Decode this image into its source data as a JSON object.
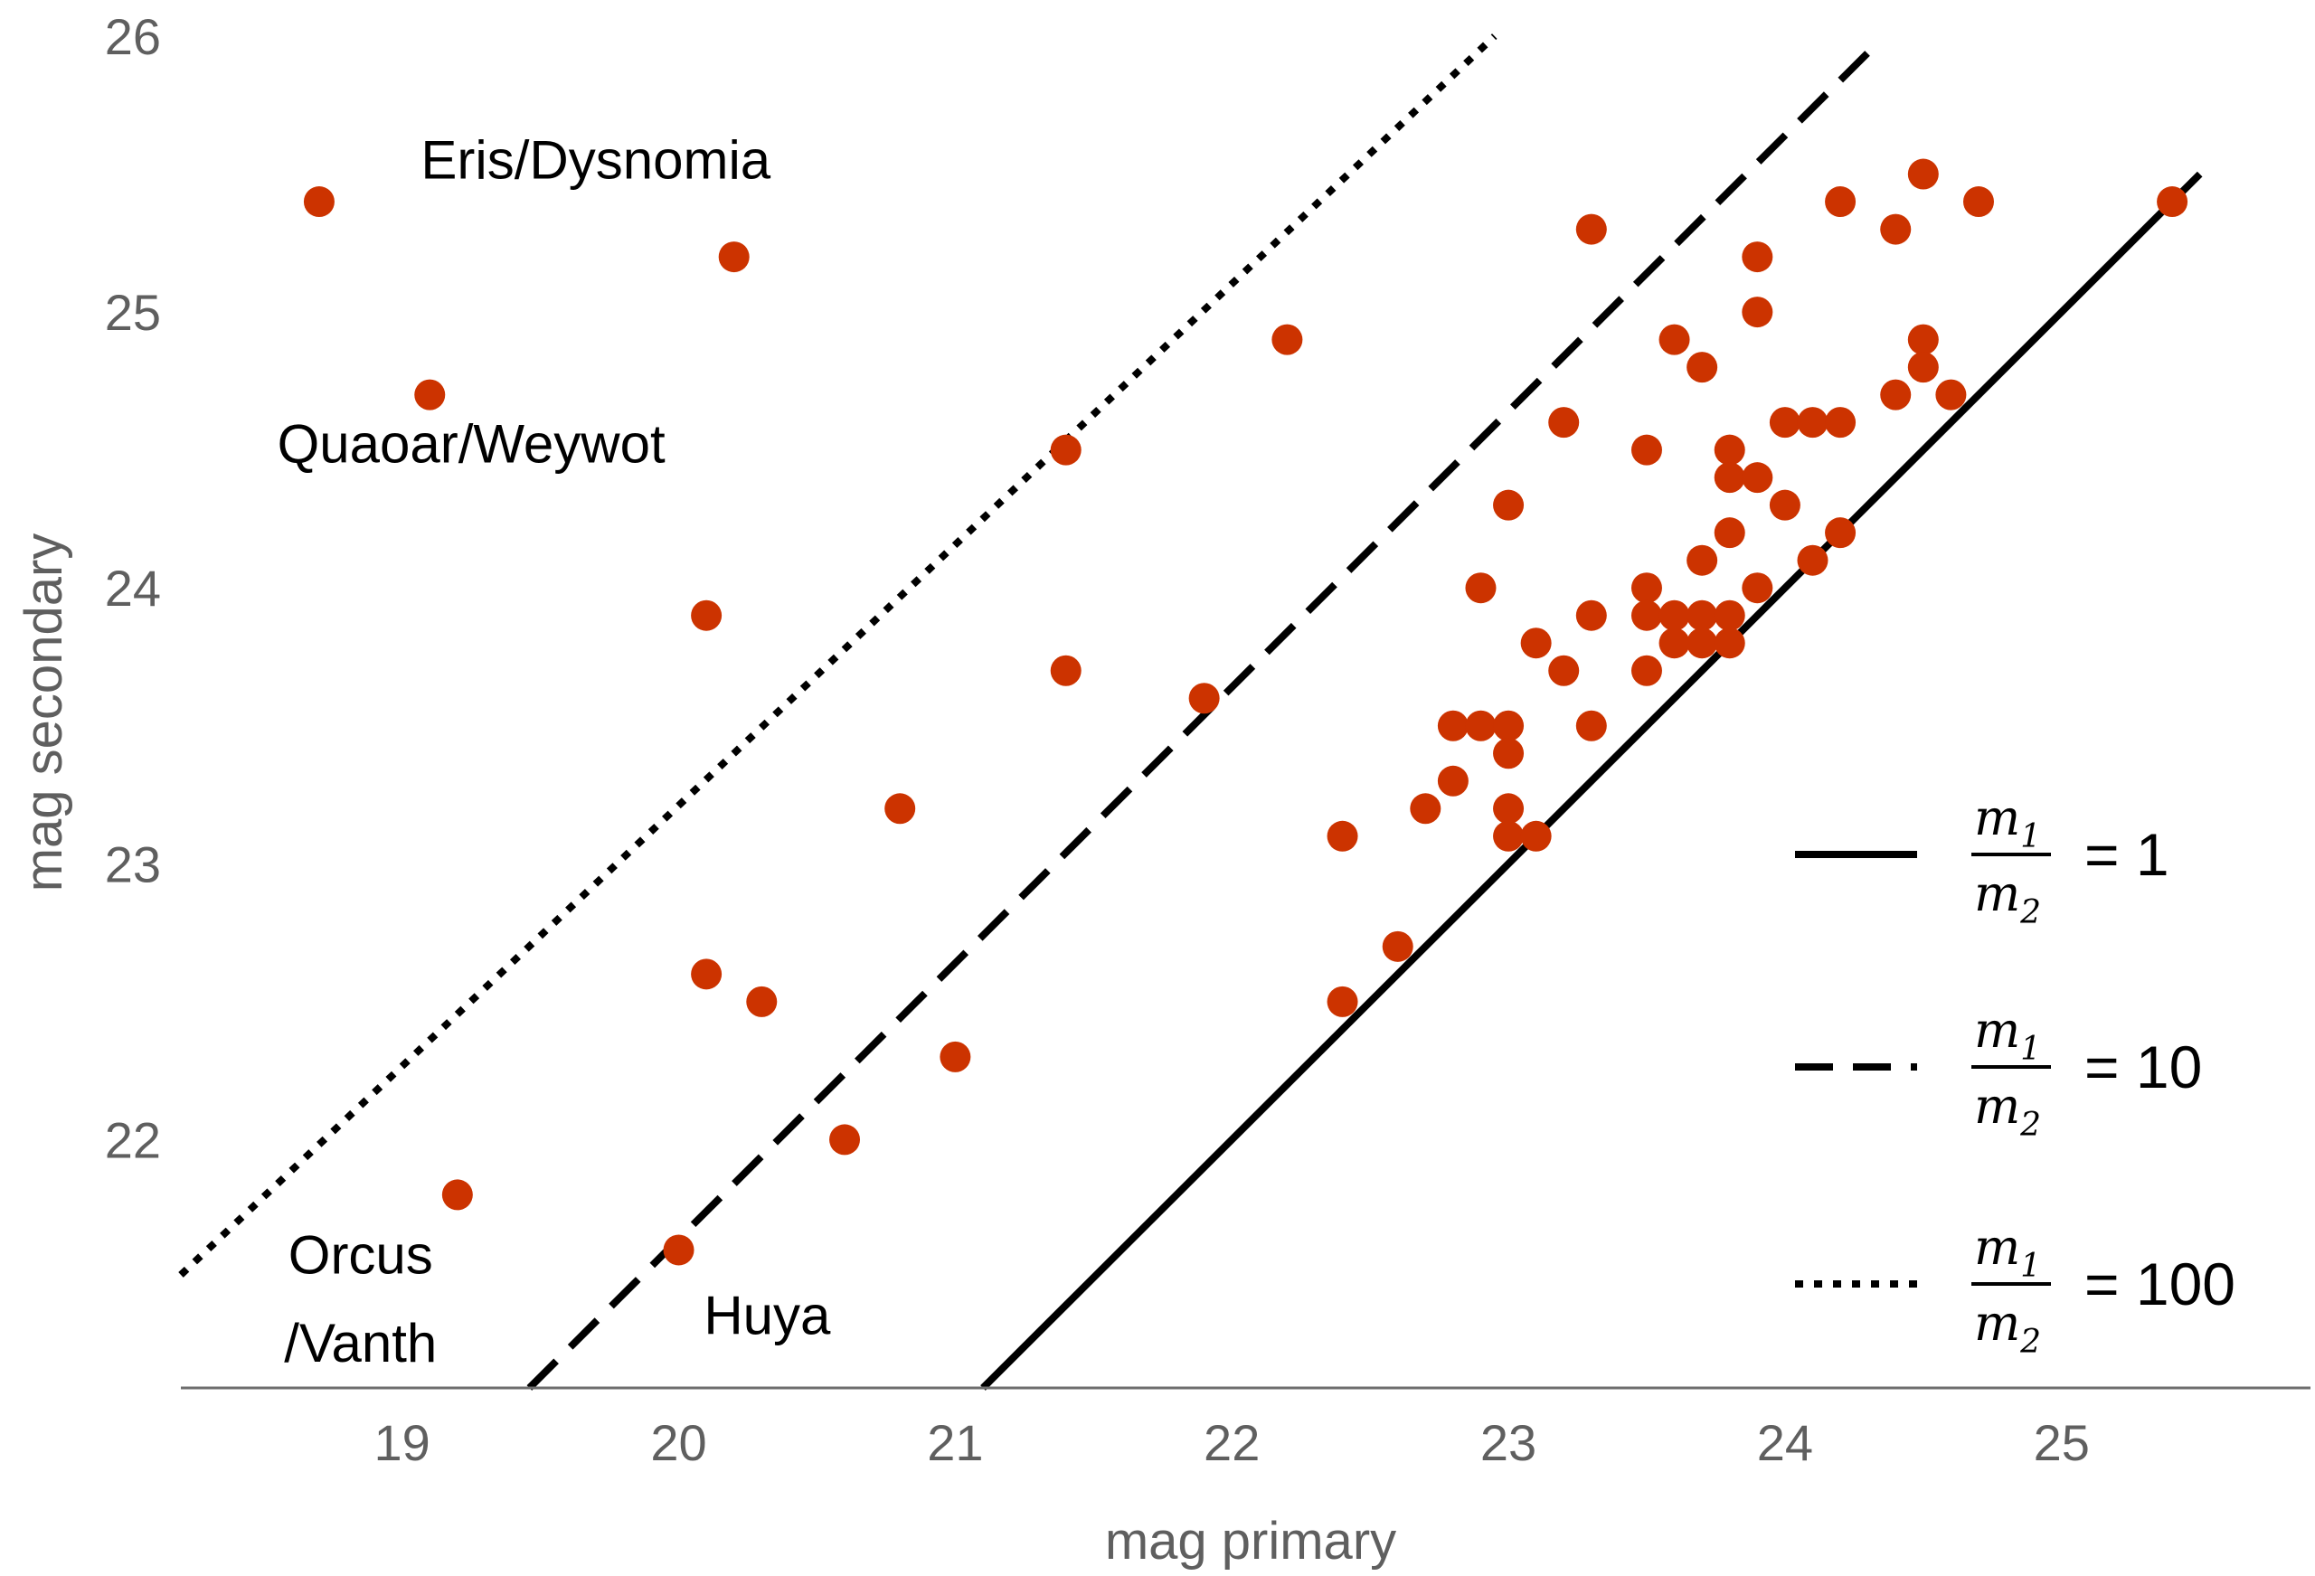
{
  "chart_data": {
    "type": "scatter",
    "xlabel": "mag primary",
    "ylabel": "mag secondary",
    "xlim": [
      18.2,
      25.9
    ],
    "ylim": [
      21.1,
      26.0
    ],
    "xticks": [
      "19",
      "20",
      "21",
      "22",
      "23",
      "24",
      "25"
    ],
    "yticks": [
      "22",
      "23",
      "24",
      "25",
      "26"
    ],
    "grid": false,
    "legend_position": "right",
    "point_color": "#cc3300",
    "line_color": "#000000",
    "points": [
      {
        "x": 18.7,
        "y": 25.4
      },
      {
        "x": 19.1,
        "y": 24.7
      },
      {
        "x": 19.2,
        "y": 21.8
      },
      {
        "x": 20.0,
        "y": 21.6
      },
      {
        "x": 20.1,
        "y": 23.9
      },
      {
        "x": 20.1,
        "y": 22.6
      },
      {
        "x": 20.2,
        "y": 25.2
      },
      {
        "x": 20.3,
        "y": 22.5
      },
      {
        "x": 20.6,
        "y": 22.0
      },
      {
        "x": 20.8,
        "y": 23.2
      },
      {
        "x": 21.0,
        "y": 22.3
      },
      {
        "x": 21.4,
        "y": 24.5
      },
      {
        "x": 21.4,
        "y": 23.7
      },
      {
        "x": 21.9,
        "y": 23.6
      },
      {
        "x": 22.2,
        "y": 24.9
      },
      {
        "x": 22.4,
        "y": 23.1
      },
      {
        "x": 22.4,
        "y": 22.5
      },
      {
        "x": 22.6,
        "y": 22.7
      },
      {
        "x": 22.7,
        "y": 23.2
      },
      {
        "x": 22.8,
        "y": 23.5
      },
      {
        "x": 22.8,
        "y": 23.3
      },
      {
        "x": 22.9,
        "y": 24.0
      },
      {
        "x": 22.9,
        "y": 23.5
      },
      {
        "x": 23.0,
        "y": 24.3
      },
      {
        "x": 23.0,
        "y": 23.5
      },
      {
        "x": 23.0,
        "y": 23.4
      },
      {
        "x": 23.0,
        "y": 23.2
      },
      {
        "x": 23.0,
        "y": 23.1
      },
      {
        "x": 23.1,
        "y": 23.8
      },
      {
        "x": 23.1,
        "y": 23.1
      },
      {
        "x": 23.2,
        "y": 24.6
      },
      {
        "x": 23.2,
        "y": 23.7
      },
      {
        "x": 23.3,
        "y": 25.3
      },
      {
        "x": 23.3,
        "y": 23.9
      },
      {
        "x": 23.3,
        "y": 23.5
      },
      {
        "x": 23.5,
        "y": 24.5
      },
      {
        "x": 23.5,
        "y": 24.0
      },
      {
        "x": 23.5,
        "y": 23.9
      },
      {
        "x": 23.5,
        "y": 23.7
      },
      {
        "x": 23.6,
        "y": 24.9
      },
      {
        "x": 23.6,
        "y": 23.9
      },
      {
        "x": 23.6,
        "y": 23.8
      },
      {
        "x": 23.7,
        "y": 24.8
      },
      {
        "x": 23.7,
        "y": 24.1
      },
      {
        "x": 23.7,
        "y": 23.9
      },
      {
        "x": 23.7,
        "y": 23.8
      },
      {
        "x": 23.8,
        "y": 24.5
      },
      {
        "x": 23.8,
        "y": 24.4
      },
      {
        "x": 23.8,
        "y": 24.2
      },
      {
        "x": 23.8,
        "y": 23.9
      },
      {
        "x": 23.8,
        "y": 23.8
      },
      {
        "x": 23.9,
        "y": 25.2
      },
      {
        "x": 23.9,
        "y": 25.0
      },
      {
        "x": 23.9,
        "y": 24.4
      },
      {
        "x": 23.9,
        "y": 24.0
      },
      {
        "x": 24.0,
        "y": 24.6
      },
      {
        "x": 24.0,
        "y": 24.3
      },
      {
        "x": 24.1,
        "y": 24.6
      },
      {
        "x": 24.1,
        "y": 24.1
      },
      {
        "x": 24.2,
        "y": 25.4
      },
      {
        "x": 24.2,
        "y": 24.6
      },
      {
        "x": 24.2,
        "y": 24.2
      },
      {
        "x": 24.4,
        "y": 25.3
      },
      {
        "x": 24.4,
        "y": 24.7
      },
      {
        "x": 24.5,
        "y": 25.5
      },
      {
        "x": 24.5,
        "y": 24.9
      },
      {
        "x": 24.5,
        "y": 24.8
      },
      {
        "x": 24.6,
        "y": 24.7
      },
      {
        "x": 24.7,
        "y": 25.4
      },
      {
        "x": 25.4,
        "y": 25.4
      }
    ],
    "annotations": [
      {
        "text": "Eris/Dysnomia",
        "x": 19.7,
        "y": 25.55
      },
      {
        "text": "Quaoar/Weywot",
        "x": 19.25,
        "y": 24.52
      },
      {
        "text": "Orcus",
        "x": 18.85,
        "y": 21.58
      },
      {
        "text": "/Vanth",
        "x": 18.85,
        "y": 21.26
      },
      {
        "text": "Huya",
        "x": 20.32,
        "y": 21.36
      }
    ],
    "lines": [
      {
        "mass_ratio": 1,
        "x": [
          21.1,
          25.5
        ],
        "y": [
          21.1,
          25.5
        ],
        "style": "solid"
      },
      {
        "mass_ratio": 10,
        "x": [
          19.46,
          24.34
        ],
        "y": [
          21.1,
          25.98
        ],
        "style": "dashed"
      },
      {
        "mass_ratio": 100,
        "x": [
          18.2,
          22.95
        ],
        "y": [
          21.51,
          26.0
        ],
        "style": "dotted"
      }
    ],
    "legend": [
      {
        "numerator": "m",
        "numerator_sub": "1",
        "denominator": "m",
        "denominator_sub": "2",
        "value": "= 1",
        "style": "solid"
      },
      {
        "numerator": "m",
        "numerator_sub": "1",
        "denominator": "m",
        "denominator_sub": "2",
        "value": "= 10",
        "style": "dashed"
      },
      {
        "numerator": "m",
        "numerator_sub": "1",
        "denominator": "m",
        "denominator_sub": "2",
        "value": "= 100",
        "style": "dotted"
      }
    ]
  }
}
